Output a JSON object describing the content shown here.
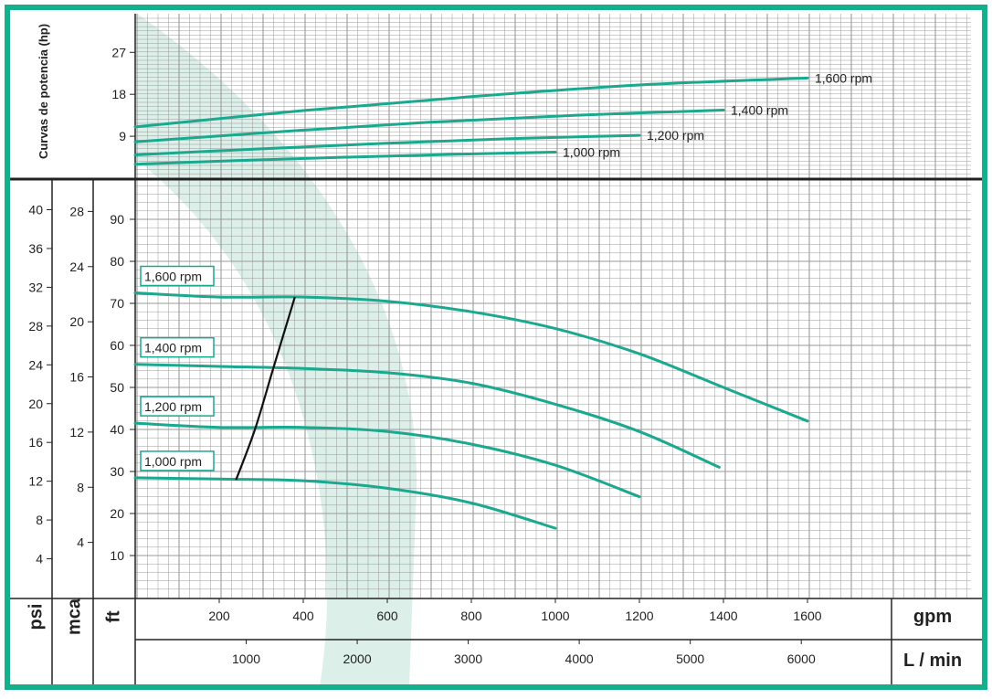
{
  "colors": {
    "frame": "#14b08c",
    "curve": "#1aa88e",
    "efficiency_line": "#111111",
    "watermark": "#dcefe9",
    "grid": "#9a9a9a",
    "axis": "#222222"
  },
  "chart_data": [
    {
      "type": "line",
      "panel": "power",
      "ylabel": "Curvas de potencia (hp)",
      "yticks": [
        9,
        18,
        27
      ],
      "ylim": [
        0,
        30
      ],
      "xlim": [
        0,
        2000
      ],
      "series": [
        {
          "name": "1,600 rpm",
          "x": [
            0,
            400,
            800,
            1200,
            1600
          ],
          "y": [
            11,
            14.5,
            17.5,
            20,
            21.5
          ]
        },
        {
          "name": "1,400 rpm",
          "x": [
            0,
            350,
            700,
            1050,
            1400
          ],
          "y": [
            7.8,
            10,
            12,
            13.5,
            14.6
          ]
        },
        {
          "name": "1,200 rpm",
          "x": [
            0,
            300,
            600,
            900,
            1200
          ],
          "y": [
            5,
            6.3,
            7.5,
            8.5,
            9.2
          ]
        },
        {
          "name": "1,000 rpm",
          "x": [
            0,
            250,
            500,
            750,
            1000
          ],
          "y": [
            3,
            3.8,
            4.5,
            5.1,
            5.6
          ]
        }
      ]
    },
    {
      "type": "line",
      "panel": "head",
      "xlabel_primary": "gpm",
      "xlabel_secondary": "L / min",
      "xticks_gpm": [
        200,
        400,
        600,
        800,
        1000,
        1200,
        1400,
        1600
      ],
      "xticks_lmin": [
        1000,
        2000,
        3000,
        4000,
        5000,
        6000
      ],
      "xlim": [
        0,
        2000
      ],
      "ylim_ft": [
        0,
        100
      ],
      "yticks_ft": [
        10,
        20,
        30,
        40,
        50,
        60,
        70,
        80,
        90
      ],
      "yaxis_ft_label": "ft",
      "yaxis_mca_label": "mca",
      "yticks_mca": [
        4,
        8,
        12,
        16,
        20,
        24,
        28
      ],
      "yaxis_psi_label": "psi",
      "yticks_psi": [
        4,
        8,
        12,
        16,
        20,
        24,
        28,
        32,
        36,
        40
      ],
      "series": [
        {
          "name": "1,600 rpm",
          "x": [
            0,
            200,
            400,
            600,
            800,
            1000,
            1200,
            1400,
            1600
          ],
          "y": [
            72.5,
            71.5,
            71.5,
            70.5,
            68,
            64,
            58,
            50,
            42
          ]
        },
        {
          "name": "1,400 rpm",
          "x": [
            0,
            200,
            400,
            600,
            800,
            1000,
            1200,
            1390
          ],
          "y": [
            55.5,
            55,
            54.5,
            53.5,
            51,
            46,
            39.5,
            31
          ]
        },
        {
          "name": "1,200 rpm",
          "x": [
            0,
            200,
            400,
            600,
            800,
            1000,
            1200
          ],
          "y": [
            41.5,
            40.5,
            40.5,
            39.5,
            36.5,
            31.5,
            24
          ]
        },
        {
          "name": "1,000 rpm",
          "x": [
            0,
            200,
            400,
            600,
            800,
            1000
          ],
          "y": [
            28.5,
            28.2,
            27.8,
            26,
            22.5,
            16.5
          ]
        },
        {
          "name": "",
          "x": [
            240,
            285,
            330,
            380
          ],
          "y": [
            28,
            40,
            55,
            71.5
          ]
        }
      ]
    }
  ]
}
